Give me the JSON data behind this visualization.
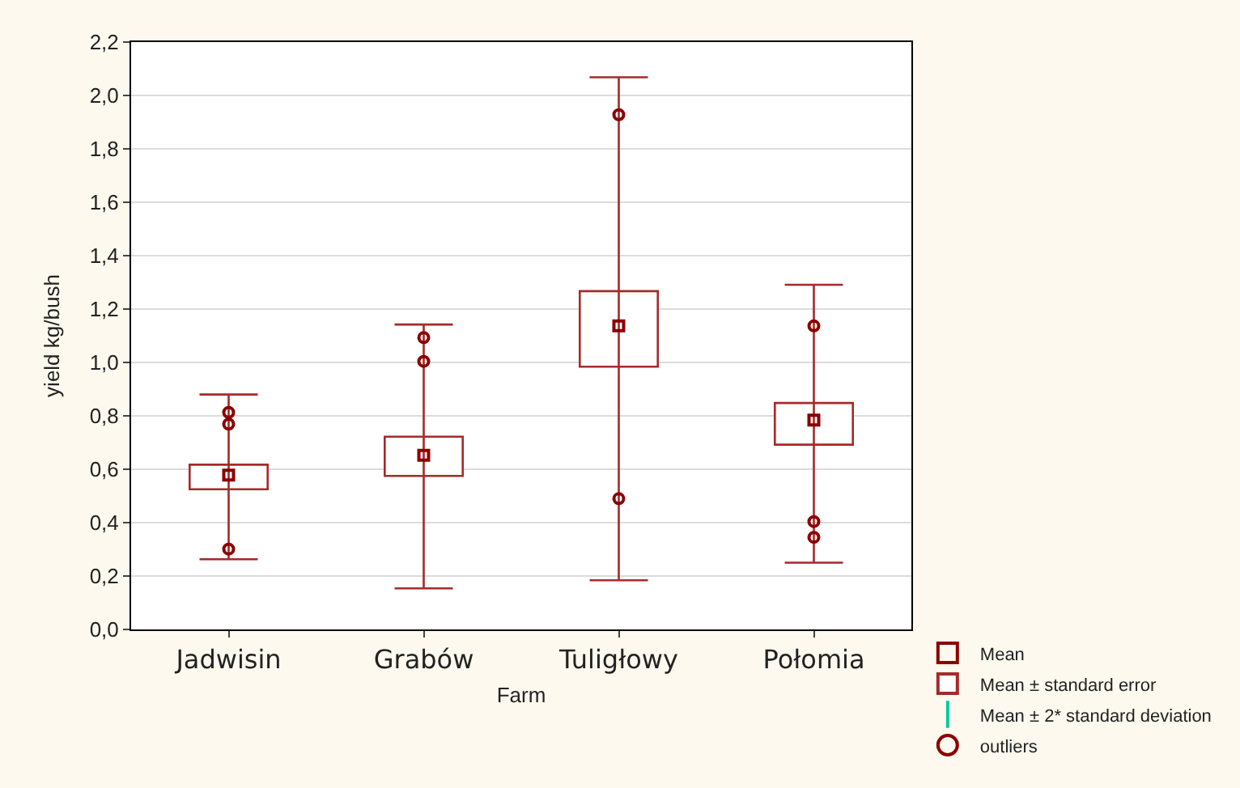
{
  "chart_data": {
    "type": "box",
    "xlabel": "Farm",
    "ylabel": "yield kg/bush",
    "categories": [
      "Jadwisin",
      "Grabów",
      "Tuligłowy",
      "Połomia"
    ],
    "ylim": [
      0,
      2.2
    ],
    "yticks": [
      {
        "value": 0,
        "label": "0,0"
      },
      {
        "value": 0.2,
        "label": "0,2"
      },
      {
        "value": 0.4,
        "label": "0,4"
      },
      {
        "value": 0.6,
        "label": "0,6"
      },
      {
        "value": 0.8,
        "label": "0,8"
      },
      {
        "value": 1.0,
        "label": "1,0"
      },
      {
        "value": 1.2,
        "label": "1,2"
      },
      {
        "value": 1.4,
        "label": "1,4"
      },
      {
        "value": 1.6,
        "label": "1,6"
      },
      {
        "value": 1.8,
        "label": "1,8"
      },
      {
        "value": 2.0,
        "label": "2,0"
      },
      {
        "value": 2.2,
        "label": "2,2"
      }
    ],
    "grid": "y",
    "legend": "bottom right",
    "annotations": [
      "Mean ± 2* standard deviation"
    ],
    "series": [
      {
        "name": "Mean",
        "type": "scatter",
        "marker": "square",
        "color": "#8b0000",
        "values": [
          0.578,
          0.652,
          1.137,
          0.784
        ],
        "errors": [
          [
            0.263,
            0.88
          ],
          [
            0.154,
            1.142
          ],
          [
            0.184,
            2.068
          ],
          [
            0.25,
            1.291
          ]
        ]
      },
      {
        "name": "Mean ± standard error",
        "type": "bar",
        "color": "#a52a2a",
        "base": [
          0.525,
          0.575,
          0.984,
          0.692
        ],
        "values": [
          0.092,
          0.147,
          0.283,
          0.156
        ]
      },
      {
        "name": "outliers",
        "type": "scatter",
        "marker": "circle",
        "color": "#8b0000",
        "x": [
          "Jadwisin",
          "Jadwisin",
          "Jadwisin",
          "Grabów",
          "Grabów",
          "Tuligłowy",
          "Tuligłowy",
          "Połomia",
          "Połomia",
          "Połomia"
        ],
        "values": [
          0.813,
          0.769,
          0.301,
          1.093,
          1.004,
          1.928,
          0.49,
          1.137,
          0.404,
          0.345
        ]
      }
    ]
  }
}
